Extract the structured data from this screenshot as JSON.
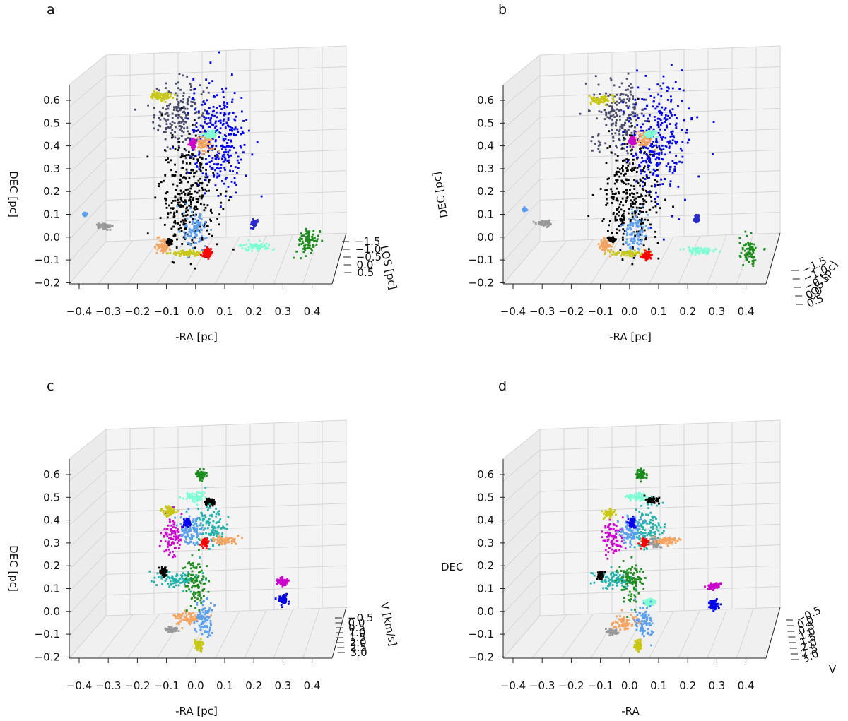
{
  "figure": "four 3D scatter views of clustered structures",
  "chart_data": [
    {
      "type": "scatter",
      "panel_label": "a",
      "xlabel": "-RA [pc]",
      "ylabel": "DEC [pc]",
      "zlabel": "LOS [pc]",
      "x_ticks": [
        "−0.4",
        "−0.3",
        "−0.2",
        "−0.1",
        "0.0",
        "0.1",
        "0.2",
        "0.3",
        "0.4"
      ],
      "y_ticks": [
        "−0.2",
        "−0.1",
        "0.0",
        "0.1",
        "0.2",
        "0.3",
        "0.4",
        "0.5",
        "0.6"
      ],
      "z_ticks": [
        "−1.5",
        "−1.0",
        "−0.5",
        "0.0",
        "0.5"
      ],
      "xlim": [
        -0.45,
        0.45
      ],
      "ylim": [
        -0.22,
        0.65
      ],
      "clusters": [
        {
          "color": "#4a4a6a",
          "x": -0.05,
          "y": 0.53,
          "sx": 0.045,
          "sy": 0.08
        },
        {
          "color": "#000000",
          "x": -0.02,
          "y": 0.18,
          "sx": 0.05,
          "sy": 0.13
        },
        {
          "color": "#0000ee",
          "x": 0.08,
          "y": 0.43,
          "sx": 0.05,
          "sy": 0.12
        },
        {
          "color": "#5a9ef0",
          "x": 0.0,
          "y": 0.03,
          "sx": 0.02,
          "sy": 0.04
        },
        {
          "color": "#f4a460",
          "x": 0.03,
          "y": 0.41,
          "sx": 0.015,
          "sy": 0.02
        },
        {
          "color": "#f4a460",
          "x": -0.11,
          "y": -0.04,
          "sx": 0.012,
          "sy": 0.015
        },
        {
          "color": "#c8c814",
          "x": -0.12,
          "y": 0.62,
          "sx": 0.02,
          "sy": 0.01
        },
        {
          "color": "#c8c814",
          "x": -0.03,
          "y": -0.07,
          "sx": 0.03,
          "sy": 0.006
        },
        {
          "color": "#cc00cc",
          "x": -0.01,
          "y": 0.41,
          "sx": 0.006,
          "sy": 0.01
        },
        {
          "color": "#7fffd4",
          "x": 0.05,
          "y": 0.45,
          "sx": 0.012,
          "sy": 0.008
        },
        {
          "color": "#7fffd4",
          "x": 0.21,
          "y": -0.04,
          "sx": 0.025,
          "sy": 0.008
        },
        {
          "color": "#ff0000",
          "x": 0.04,
          "y": -0.07,
          "sx": 0.008,
          "sy": 0.01
        },
        {
          "color": "#000000",
          "x": -0.09,
          "y": -0.02,
          "sx": 0.005,
          "sy": 0.005
        },
        {
          "color": "#1e8b1e",
          "x": 0.39,
          "y": -0.02,
          "sx": 0.018,
          "sy": 0.03
        },
        {
          "color": "#2a2acc",
          "x": 0.2,
          "y": 0.06,
          "sx": 0.005,
          "sy": 0.008
        },
        {
          "color": "#999999",
          "x": -0.31,
          "y": 0.05,
          "sx": 0.012,
          "sy": 0.006
        },
        {
          "color": "#5a9ef0",
          "x": -0.38,
          "y": 0.1,
          "sx": 0.003,
          "sy": 0.004
        }
      ]
    },
    {
      "type": "scatter",
      "panel_label": "b",
      "xlabel": "-RA [pc]",
      "ylabel": "DEC [pc]",
      "zlabel": "LOS [pc]",
      "x_ticks": [
        "−0.4",
        "−0.3",
        "−0.2",
        "−0.1",
        "0.0",
        "0.1",
        "0.2",
        "0.3",
        "0.4"
      ],
      "y_ticks": [
        "−0.2",
        "−0.1",
        "0.0",
        "0.1",
        "0.2",
        "0.3",
        "0.4",
        "0.5",
        "0.6"
      ],
      "z_ticks": [
        "−1.5",
        "−1.0",
        "−0.5",
        "0.0",
        "0.5"
      ],
      "xlim": [
        -0.45,
        0.45
      ],
      "ylim": [
        -0.22,
        0.65
      ],
      "clusters": [
        {
          "color": "#4a4a6a",
          "x": -0.03,
          "y": 0.53,
          "sx": 0.045,
          "sy": 0.08
        },
        {
          "color": "#000000",
          "x": 0.0,
          "y": 0.18,
          "sx": 0.05,
          "sy": 0.13
        },
        {
          "color": "#0000ee",
          "x": 0.1,
          "y": 0.43,
          "sx": 0.05,
          "sy": 0.12
        },
        {
          "color": "#5a9ef0",
          "x": 0.02,
          "y": 0.03,
          "sx": 0.02,
          "sy": 0.04
        },
        {
          "color": "#f4a460",
          "x": 0.05,
          "y": 0.43,
          "sx": 0.015,
          "sy": 0.02
        },
        {
          "color": "#f4a460",
          "x": -0.08,
          "y": -0.04,
          "sx": 0.012,
          "sy": 0.015
        },
        {
          "color": "#c8c814",
          "x": -0.1,
          "y": 0.6,
          "sx": 0.02,
          "sy": 0.01
        },
        {
          "color": "#c8c814",
          "x": -0.01,
          "y": -0.07,
          "sx": 0.03,
          "sy": 0.006
        },
        {
          "color": "#cc00cc",
          "x": 0.01,
          "y": 0.42,
          "sx": 0.006,
          "sy": 0.01
        },
        {
          "color": "#7fffd4",
          "x": 0.07,
          "y": 0.45,
          "sx": 0.012,
          "sy": 0.008
        },
        {
          "color": "#7fffd4",
          "x": 0.24,
          "y": -0.06,
          "sx": 0.025,
          "sy": 0.008
        },
        {
          "color": "#ff0000",
          "x": 0.06,
          "y": -0.08,
          "sx": 0.008,
          "sy": 0.01
        },
        {
          "color": "#000000",
          "x": -0.06,
          "y": -0.01,
          "sx": 0.005,
          "sy": 0.005
        },
        {
          "color": "#1e8b1e",
          "x": 0.41,
          "y": -0.06,
          "sx": 0.018,
          "sy": 0.03
        },
        {
          "color": "#2a2acc",
          "x": 0.23,
          "y": 0.08,
          "sx": 0.005,
          "sy": 0.008
        },
        {
          "color": "#999999",
          "x": -0.29,
          "y": 0.06,
          "sx": 0.012,
          "sy": 0.006
        },
        {
          "color": "#5a9ef0",
          "x": -0.36,
          "y": 0.12,
          "sx": 0.003,
          "sy": 0.004
        }
      ]
    },
    {
      "type": "scatter",
      "panel_label": "c",
      "xlabel": "-RA [pc]",
      "ylabel": "DEC [pc]",
      "zlabel": "V [km/s]",
      "x_ticks": [
        "−0.4",
        "−0.3",
        "−0.2",
        "−0.1",
        "0.0",
        "0.1",
        "0.2",
        "0.3",
        "0.4"
      ],
      "y_ticks": [
        "−0.2",
        "−0.1",
        "0.0",
        "0.1",
        "0.2",
        "0.3",
        "0.4",
        "0.5",
        "0.6"
      ],
      "z_ticks": [
        "−0.5",
        "0.0",
        "0.5",
        "1.0",
        "1.5",
        "2.0",
        "2.5",
        "3.0"
      ],
      "xlim": [
        -0.45,
        0.45
      ],
      "ylim": [
        -0.22,
        0.65
      ],
      "clusters": [
        {
          "color": "#1e8b1e",
          "x": 0.02,
          "y": 0.6,
          "sx": 0.008,
          "sy": 0.012
        },
        {
          "color": "#7fffd4",
          "x": 0.0,
          "y": 0.5,
          "sx": 0.02,
          "sy": 0.01
        },
        {
          "color": "#000000",
          "x": 0.05,
          "y": 0.48,
          "sx": 0.01,
          "sy": 0.008
        },
        {
          "color": "#20b2aa",
          "x": 0.05,
          "y": 0.37,
          "sx": 0.03,
          "sy": 0.05
        },
        {
          "color": "#cc00cc",
          "x": -0.08,
          "y": 0.33,
          "sx": 0.018,
          "sy": 0.04
        },
        {
          "color": "#c8c814",
          "x": -0.09,
          "y": 0.44,
          "sx": 0.01,
          "sy": 0.01
        },
        {
          "color": "#5a9ef0",
          "x": -0.02,
          "y": 0.35,
          "sx": 0.02,
          "sy": 0.03
        },
        {
          "color": "#0000ee",
          "x": -0.03,
          "y": 0.39,
          "sx": 0.006,
          "sy": 0.01
        },
        {
          "color": "#ff0000",
          "x": 0.03,
          "y": 0.3,
          "sx": 0.006,
          "sy": 0.008
        },
        {
          "color": "#f4a460",
          "x": 0.09,
          "y": 0.31,
          "sx": 0.025,
          "sy": 0.008
        },
        {
          "color": "#20b2aa",
          "x": -0.06,
          "y": 0.14,
          "sx": 0.035,
          "sy": 0.02
        },
        {
          "color": "#1e8b1e",
          "x": 0.0,
          "y": 0.13,
          "sx": 0.02,
          "sy": 0.05
        },
        {
          "color": "#000000",
          "x": -0.11,
          "y": 0.17,
          "sx": 0.006,
          "sy": 0.01
        },
        {
          "color": "#f4a460",
          "x": -0.03,
          "y": -0.03,
          "sx": 0.025,
          "sy": 0.015
        },
        {
          "color": "#5a9ef0",
          "x": 0.03,
          "y": -0.04,
          "sx": 0.015,
          "sy": 0.04
        },
        {
          "color": "#999999",
          "x": -0.08,
          "y": -0.08,
          "sx": 0.01,
          "sy": 0.006
        },
        {
          "color": "#c8c814",
          "x": 0.01,
          "y": -0.15,
          "sx": 0.006,
          "sy": 0.012
        },
        {
          "color": "#cc00cc",
          "x": 0.3,
          "y": 0.13,
          "sx": 0.01,
          "sy": 0.008
        },
        {
          "color": "#0000ee",
          "x": 0.3,
          "y": 0.05,
          "sx": 0.008,
          "sy": 0.012
        }
      ]
    },
    {
      "type": "scatter",
      "panel_label": "d",
      "xlabel": "-RA",
      "ylabel": "DEC",
      "zlabel": "V",
      "x_ticks": [
        "−0.4",
        "−0.3",
        "−0.2",
        "−0.1",
        "0.0",
        "0.1",
        "0.2",
        "0.3",
        "0.4"
      ],
      "y_ticks": [
        "−0.2",
        "−0.1",
        "0.0",
        "0.1",
        "0.2",
        "0.3",
        "0.4",
        "0.5",
        "0.6"
      ],
      "z_ticks": [
        "−0.5",
        "0.0",
        "0.5",
        "1.0",
        "1.5",
        "2.0",
        "2.5",
        "3.0"
      ],
      "xlim": [
        -0.45,
        0.45
      ],
      "ylim": [
        -0.22,
        0.65
      ],
      "clusters": [
        {
          "color": "#1e8b1e",
          "x": 0.04,
          "y": 0.6,
          "sx": 0.008,
          "sy": 0.012
        },
        {
          "color": "#7fffd4",
          "x": 0.03,
          "y": 0.5,
          "sx": 0.02,
          "sy": 0.01
        },
        {
          "color": "#000000",
          "x": 0.08,
          "y": 0.49,
          "sx": 0.01,
          "sy": 0.008
        },
        {
          "color": "#20b2aa",
          "x": 0.06,
          "y": 0.37,
          "sx": 0.03,
          "sy": 0.05
        },
        {
          "color": "#cc00cc",
          "x": -0.06,
          "y": 0.32,
          "sx": 0.018,
          "sy": 0.04
        },
        {
          "color": "#c8c814",
          "x": -0.07,
          "y": 0.43,
          "sx": 0.01,
          "sy": 0.01
        },
        {
          "color": "#5a9ef0",
          "x": 0.0,
          "y": 0.35,
          "sx": 0.02,
          "sy": 0.03
        },
        {
          "color": "#0000ee",
          "x": 0.01,
          "y": 0.39,
          "sx": 0.006,
          "sy": 0.01
        },
        {
          "color": "#ff0000",
          "x": 0.05,
          "y": 0.3,
          "sx": 0.006,
          "sy": 0.008
        },
        {
          "color": "#999999",
          "x": 0.09,
          "y": 0.3,
          "sx": 0.01,
          "sy": 0.01
        },
        {
          "color": "#f4a460",
          "x": 0.12,
          "y": 0.31,
          "sx": 0.025,
          "sy": 0.008
        },
        {
          "color": "#20b2aa",
          "x": -0.05,
          "y": 0.14,
          "sx": 0.035,
          "sy": 0.02
        },
        {
          "color": "#1e8b1e",
          "x": 0.01,
          "y": 0.13,
          "sx": 0.02,
          "sy": 0.05
        },
        {
          "color": "#000000",
          "x": -0.1,
          "y": 0.16,
          "sx": 0.006,
          "sy": 0.01
        },
        {
          "color": "#7fffd4",
          "x": 0.07,
          "y": 0.04,
          "sx": 0.01,
          "sy": 0.008
        },
        {
          "color": "#f4a460",
          "x": -0.02,
          "y": -0.05,
          "sx": 0.025,
          "sy": 0.015
        },
        {
          "color": "#5a9ef0",
          "x": 0.05,
          "y": -0.05,
          "sx": 0.015,
          "sy": 0.04
        },
        {
          "color": "#999999",
          "x": -0.06,
          "y": -0.09,
          "sx": 0.01,
          "sy": 0.006
        },
        {
          "color": "#c8c814",
          "x": 0.03,
          "y": -0.15,
          "sx": 0.006,
          "sy": 0.012
        },
        {
          "color": "#cc00cc",
          "x": 0.29,
          "y": 0.11,
          "sx": 0.01,
          "sy": 0.008
        },
        {
          "color": "#0000ee",
          "x": 0.29,
          "y": 0.03,
          "sx": 0.008,
          "sy": 0.012
        }
      ]
    }
  ]
}
